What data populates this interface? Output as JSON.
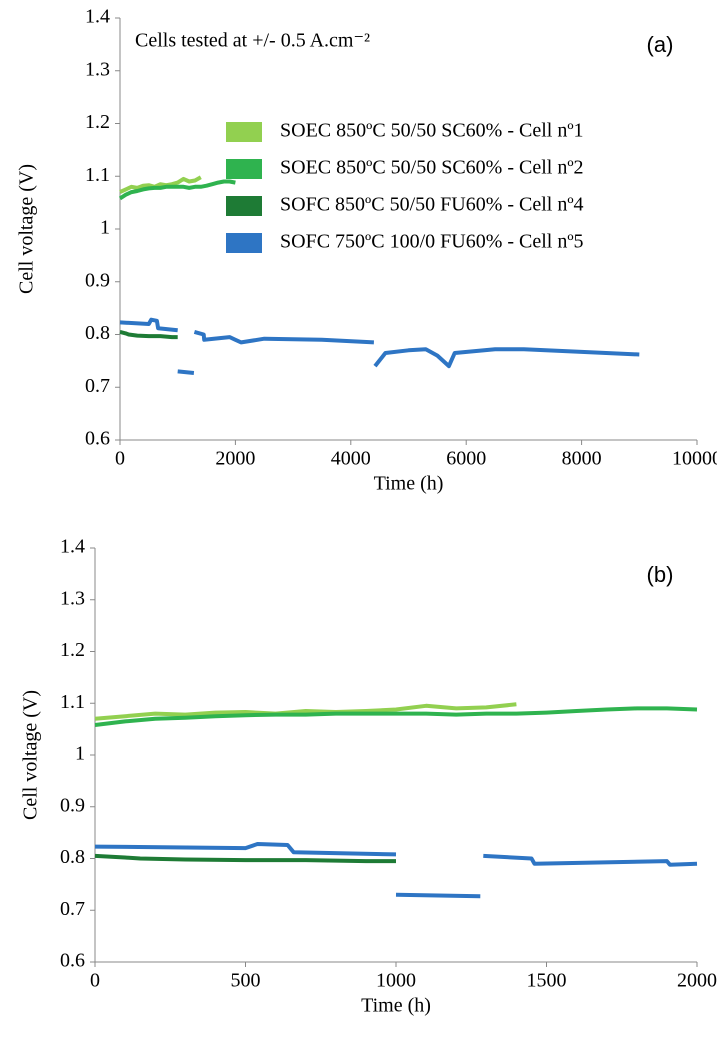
{
  "chart_data": [
    {
      "type": "line",
      "title": "Cells tested at +/- 0.5 A.cm⁻²",
      "annotation": "(a)",
      "x_label": "Time (h)",
      "y_label": "Cell voltage (V)",
      "xlim": [
        0,
        10000
      ],
      "xticks": [
        0,
        2000,
        4000,
        6000,
        8000,
        10000
      ],
      "ylim": [
        0.6,
        1.4
      ],
      "yticks": [
        0.6,
        0.7,
        0.8,
        0.9,
        1,
        1.1,
        1.2,
        1.3,
        1.4
      ],
      "legend": "upper right",
      "series": [
        {
          "name": "SOEC 850ºC 50/50 SC60% - Cell nº1",
          "color": "#92d050",
          "x": [
            0,
            100,
            200,
            300,
            400,
            500,
            600,
            700,
            800,
            900,
            1000,
            1100,
            1200,
            1300,
            1400
          ],
          "values": [
            1.07,
            1.075,
            1.08,
            1.078,
            1.082,
            1.083,
            1.08,
            1.085,
            1.083,
            1.085,
            1.088,
            1.095,
            1.09,
            1.092,
            1.098
          ]
        },
        {
          "name": "SOEC 850ºC 50/50 SC60% - Cell nº2",
          "color": "#2fb34f",
          "x": [
            0,
            100,
            200,
            300,
            400,
            500,
            600,
            700,
            800,
            900,
            1000,
            1100,
            1200,
            1300,
            1400,
            1500,
            1600,
            1700,
            1800,
            1900,
            2000
          ],
          "values": [
            1.058,
            1.065,
            1.07,
            1.072,
            1.075,
            1.077,
            1.078,
            1.078,
            1.08,
            1.08,
            1.08,
            1.08,
            1.078,
            1.08,
            1.08,
            1.082,
            1.085,
            1.088,
            1.09,
            1.09,
            1.088
          ]
        },
        {
          "name": "SOFC 850ºC 50/50 FU60% - Cell nº4",
          "color": "#1e7b35",
          "x": [
            0,
            100,
            150,
            300,
            500,
            700,
            900,
            1000
          ],
          "values": [
            0.805,
            0.802,
            0.8,
            0.798,
            0.797,
            0.797,
            0.795,
            0.795
          ]
        },
        {
          "name": "SOFC 750ºC 100/0 FU60% - Cell nº5",
          "color": "#2e75c4",
          "x": [
            0,
            500,
            540,
            640,
            660,
            1000,
            1000,
            1000,
            1280,
            1280,
            1290,
            1450,
            1460,
            1900,
            2000,
            2100,
            2500,
            3500,
            4400,
            4400,
            4420,
            4600,
            5000,
            5300,
            5500,
            5700,
            5800,
            6500,
            7000,
            8000,
            9000
          ],
          "values": [
            0.823,
            0.82,
            0.828,
            0.826,
            0.812,
            0.808,
            null,
            0.73,
            0.727,
            null,
            0.805,
            0.8,
            0.79,
            0.795,
            0.79,
            0.785,
            0.792,
            0.79,
            0.785,
            null,
            0.74,
            0.765,
            0.77,
            0.772,
            0.76,
            0.74,
            0.765,
            0.772,
            0.772,
            0.767,
            0.762
          ]
        }
      ]
    },
    {
      "type": "line",
      "annotation": "(b)",
      "x_label": "Time (h)",
      "y_label": "Cell voltage (V)",
      "xlim": [
        0,
        2000
      ],
      "xticks": [
        0,
        500,
        1000,
        1500,
        2000
      ],
      "ylim": [
        0.6,
        1.4
      ],
      "yticks": [
        0.6,
        0.7,
        0.8,
        0.9,
        1,
        1.1,
        1.2,
        1.3,
        1.4
      ],
      "legend": false,
      "series": [
        {
          "color": "#92d050",
          "x": [
            0,
            100,
            200,
            300,
            400,
            500,
            600,
            700,
            800,
            900,
            1000,
            1100,
            1200,
            1300,
            1400
          ],
          "values": [
            1.07,
            1.075,
            1.08,
            1.078,
            1.082,
            1.083,
            1.08,
            1.085,
            1.083,
            1.085,
            1.088,
            1.095,
            1.09,
            1.092,
            1.098
          ]
        },
        {
          "color": "#2fb34f",
          "x": [
            0,
            100,
            200,
            300,
            400,
            500,
            600,
            700,
            800,
            900,
            1000,
            1100,
            1200,
            1300,
            1400,
            1500,
            1600,
            1700,
            1800,
            1900,
            2000
          ],
          "values": [
            1.058,
            1.065,
            1.07,
            1.072,
            1.075,
            1.077,
            1.078,
            1.078,
            1.08,
            1.08,
            1.08,
            1.08,
            1.078,
            1.08,
            1.08,
            1.082,
            1.085,
            1.088,
            1.09,
            1.09,
            1.088
          ]
        },
        {
          "color": "#1e7b35",
          "x": [
            0,
            100,
            150,
            300,
            500,
            700,
            900,
            1000
          ],
          "values": [
            0.805,
            0.802,
            0.8,
            0.798,
            0.797,
            0.797,
            0.795,
            0.795
          ]
        },
        {
          "color": "#2e75c4",
          "x": [
            0,
            500,
            540,
            640,
            660,
            1000,
            1000,
            1000,
            1280,
            1280,
            1290,
            1450,
            1460,
            1900,
            1910,
            2000
          ],
          "values": [
            0.823,
            0.82,
            0.828,
            0.826,
            0.812,
            0.808,
            null,
            0.73,
            0.727,
            null,
            0.805,
            0.8,
            0.79,
            0.795,
            0.788,
            0.79
          ]
        }
      ]
    }
  ]
}
